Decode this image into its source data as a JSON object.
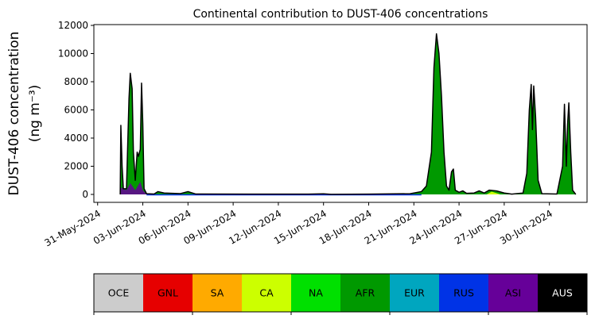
{
  "chart_data": {
    "type": "area",
    "title": "Continental contribution to DUST-406 concentrations",
    "ylabel_line1": "DUST-406 concentration",
    "ylabel_line2": "(ng m⁻³)",
    "ylim": [
      0,
      12000
    ],
    "xlim": [
      "2024-05-30T18:00",
      "2024-07-02T12:00"
    ],
    "yticks": [
      0,
      2000,
      4000,
      6000,
      8000,
      10000,
      12000
    ],
    "ytick_labels": [
      "0",
      "2000",
      "4000",
      "6000",
      "8000",
      "10000",
      "12000"
    ],
    "xtick_dates": [
      "2024-05-31",
      "2024-06-03",
      "2024-06-06",
      "2024-06-09",
      "2024-06-12",
      "2024-06-15",
      "2024-06-18",
      "2024-06-21",
      "2024-06-24",
      "2024-06-27",
      "2024-06-30"
    ],
    "xtick_labels": [
      "31-May-2024",
      "03-Jun-2024",
      "06-Jun-2024",
      "09-Jun-2024",
      "12-Jun-2024",
      "15-Jun-2024",
      "18-Jun-2024",
      "21-Jun-2024",
      "24-Jun-2024",
      "27-Jun-2024",
      "30-Jun-2024"
    ],
    "total": [
      [
        "2024-06-01T12:00",
        0
      ],
      [
        "2024-06-01T13:00",
        4900
      ],
      [
        "2024-06-01T15:00",
        2000
      ],
      [
        "2024-06-01T17:00",
        400
      ],
      [
        "2024-06-01T22:00",
        400
      ],
      [
        "2024-06-02T02:00",
        6800
      ],
      [
        "2024-06-02T04:00",
        8600
      ],
      [
        "2024-06-02T07:00",
        7500
      ],
      [
        "2024-06-02T09:00",
        3000
      ],
      [
        "2024-06-02T12:00",
        1000
      ],
      [
        "2024-06-02T15:00",
        3000
      ],
      [
        "2024-06-02T17:00",
        2700
      ],
      [
        "2024-06-02T20:00",
        3200
      ],
      [
        "2024-06-02T22:00",
        7900
      ],
      [
        "2024-06-03T00:00",
        5000
      ],
      [
        "2024-06-03T02:00",
        400
      ],
      [
        "2024-06-03T06:00",
        50
      ],
      [
        "2024-06-03T18:00",
        30
      ],
      [
        "2024-06-04T00:00",
        200
      ],
      [
        "2024-06-04T10:00",
        100
      ],
      [
        "2024-06-05T12:00",
        60
      ],
      [
        "2024-06-06T00:00",
        200
      ],
      [
        "2024-06-06T12:00",
        30
      ],
      [
        "2024-06-10T00:00",
        20
      ],
      [
        "2024-06-14T00:00",
        20
      ],
      [
        "2024-06-15T00:00",
        40
      ],
      [
        "2024-06-15T12:00",
        10
      ],
      [
        "2024-06-18T00:00",
        20
      ],
      [
        "2024-06-20T18:00",
        50
      ],
      [
        "2024-06-21T12:00",
        200
      ],
      [
        "2024-06-21T20:00",
        600
      ],
      [
        "2024-06-22T04:00",
        3000
      ],
      [
        "2024-06-22T08:00",
        9000
      ],
      [
        "2024-06-22T12:00",
        11400
      ],
      [
        "2024-06-22T16:00",
        10000
      ],
      [
        "2024-06-22T20:00",
        7000
      ],
      [
        "2024-06-23T00:00",
        3000
      ],
      [
        "2024-06-23T04:00",
        600
      ],
      [
        "2024-06-23T08:00",
        300
      ],
      [
        "2024-06-23T12:00",
        1600
      ],
      [
        "2024-06-23T15:00",
        1800
      ],
      [
        "2024-06-23T18:00",
        300
      ],
      [
        "2024-06-24T00:00",
        150
      ],
      [
        "2024-06-24T06:00",
        250
      ],
      [
        "2024-06-24T12:00",
        80
      ],
      [
        "2024-06-25T00:00",
        100
      ],
      [
        "2024-06-25T08:00",
        250
      ],
      [
        "2024-06-25T16:00",
        100
      ],
      [
        "2024-06-26T00:00",
        300
      ],
      [
        "2024-06-26T12:00",
        250
      ],
      [
        "2024-06-27T00:00",
        100
      ],
      [
        "2024-06-27T12:00",
        20
      ],
      [
        "2024-06-28T06:00",
        100
      ],
      [
        "2024-06-28T12:00",
        1500
      ],
      [
        "2024-06-28T16:00",
        6000
      ],
      [
        "2024-06-28T19:00",
        7800
      ],
      [
        "2024-06-28T21:00",
        4600
      ],
      [
        "2024-06-28T23:00",
        7700
      ],
      [
        "2024-06-29T02:00",
        5500
      ],
      [
        "2024-06-29T06:00",
        1000
      ],
      [
        "2024-06-29T12:00",
        50
      ],
      [
        "2024-06-30T12:00",
        30
      ],
      [
        "2024-06-30T21:00",
        2000
      ],
      [
        "2024-07-01T00:00",
        6400
      ],
      [
        "2024-07-01T03:00",
        2000
      ],
      [
        "2024-07-01T05:00",
        5000
      ],
      [
        "2024-07-01T07:00",
        6500
      ],
      [
        "2024-07-01T10:00",
        3000
      ],
      [
        "2024-07-01T13:00",
        300
      ],
      [
        "2024-07-01T18:00",
        0
      ]
    ],
    "asi_band": [
      [
        "2024-06-01T12:00",
        0
      ],
      [
        "2024-06-01T13:00",
        500
      ],
      [
        "2024-06-01T22:00",
        300
      ],
      [
        "2024-06-02T04:00",
        800
      ],
      [
        "2024-06-02T12:00",
        300
      ],
      [
        "2024-06-02T20:00",
        900
      ],
      [
        "2024-06-03T00:00",
        300
      ],
      [
        "2024-06-03T06:00",
        0
      ]
    ],
    "ca_patches": [
      [
        "2024-06-14T18:00",
        0
      ],
      [
        "2024-06-15T00:00",
        80
      ],
      [
        "2024-06-15T12:00",
        0
      ],
      [
        "2024-06-25T20:00",
        0
      ],
      [
        "2024-06-26T04:00",
        200
      ],
      [
        "2024-06-26T18:00",
        0
      ]
    ],
    "legend": {
      "categories": [
        {
          "label": "OCE",
          "color": "#cccccc",
          "text_color": "#000000"
        },
        {
          "label": "GNL",
          "color": "#e60000",
          "text_color": "#000000"
        },
        {
          "label": "SA",
          "color": "#ffaa00",
          "text_color": "#000000"
        },
        {
          "label": "CA",
          "color": "#ccff00",
          "text_color": "#000000"
        },
        {
          "label": "NA",
          "color": "#00e000",
          "text_color": "#000000"
        },
        {
          "label": "AFR",
          "color": "#009900",
          "text_color": "#000000"
        },
        {
          "label": "EUR",
          "color": "#00a6bf",
          "text_color": "#000000"
        },
        {
          "label": "RUS",
          "color": "#0033e6",
          "text_color": "#000000"
        },
        {
          "label": "ASI",
          "color": "#660099",
          "text_color": "#000000"
        },
        {
          "label": "AUS",
          "color": "#000000",
          "text_color": "#ffffff"
        }
      ]
    },
    "colors": {
      "afr": "#009900",
      "asi": "#660099",
      "rus": "#0033e6",
      "ca": "#ccff00",
      "outline": "#000000"
    },
    "grid": false
  }
}
